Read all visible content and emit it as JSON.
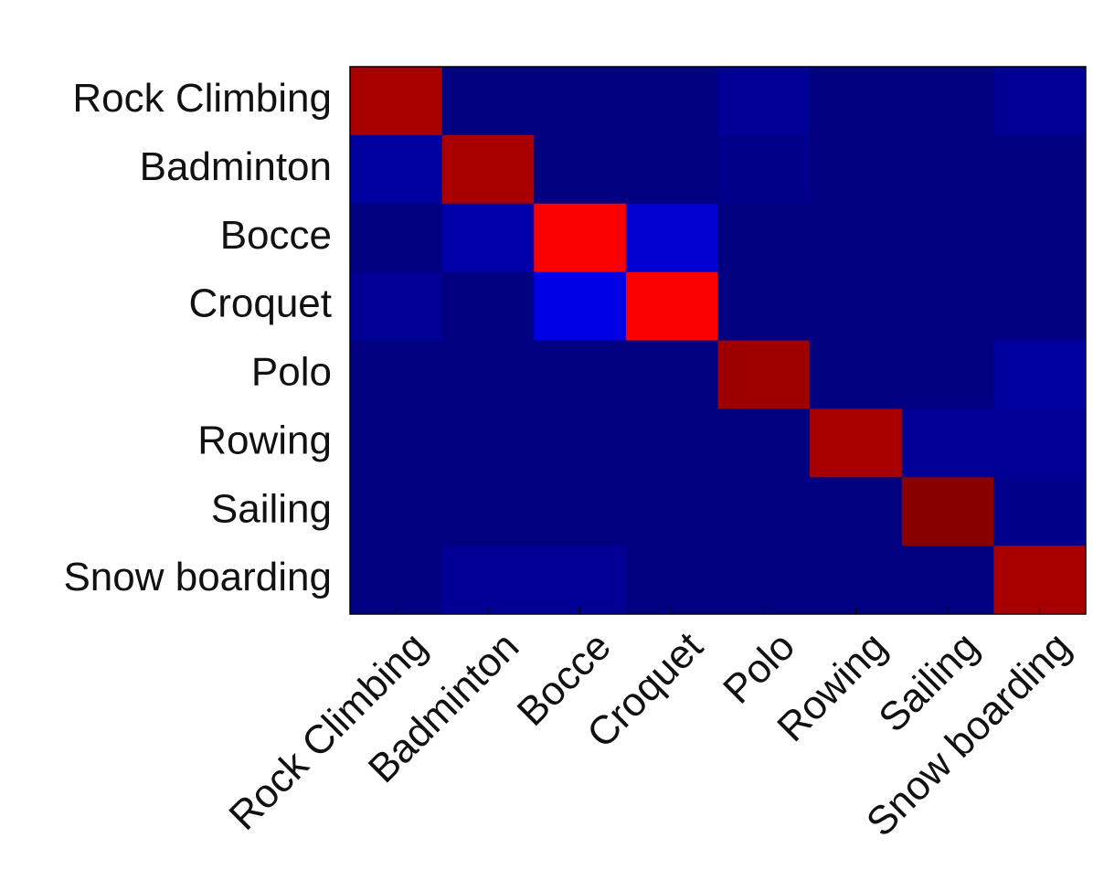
{
  "chart_data": {
    "type": "heatmap",
    "colormap": "jet",
    "clim": [
      0,
      1
    ],
    "y_categories": [
      "Rock Climbing",
      "Badminton",
      "Bocce",
      "Croquet",
      "Polo",
      "Rowing",
      "Sailing",
      "Snow boarding"
    ],
    "x_categories": [
      "Rock Climbing",
      "Badminton",
      "Bocce",
      "Croquet",
      "Polo",
      "Rowing",
      "Sailing",
      "Snow boarding"
    ],
    "values": [
      [
        0.96,
        0,
        0,
        0,
        0.02,
        0,
        0,
        0.02
      ],
      [
        0.03,
        0.96,
        0,
        0,
        0.01,
        0,
        0,
        0
      ],
      [
        0,
        0.04,
        0.88,
        0.08,
        0,
        0,
        0,
        0
      ],
      [
        0.02,
        0,
        0.1,
        0.88,
        0,
        0,
        0,
        0
      ],
      [
        0,
        0,
        0,
        0,
        0.97,
        0,
        0,
        0.03
      ],
      [
        0,
        0,
        0,
        0,
        0,
        0.96,
        0.02,
        0.02
      ],
      [
        0,
        0,
        0,
        0,
        0,
        0,
        0.99,
        0.01
      ],
      [
        0,
        0.02,
        0.02,
        0,
        0,
        0,
        0,
        0.96
      ]
    ]
  }
}
